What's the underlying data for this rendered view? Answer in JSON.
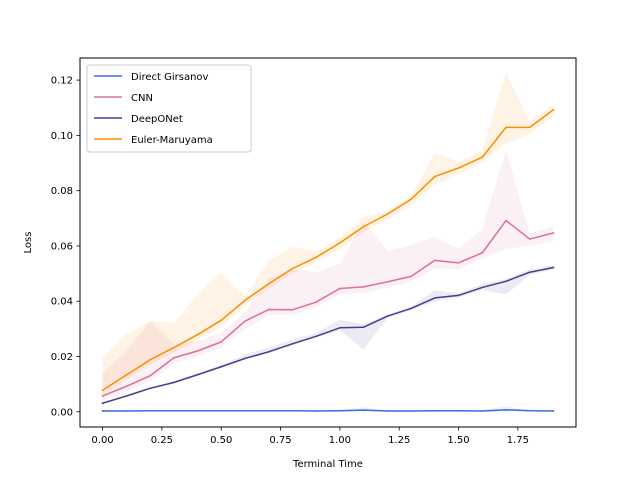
{
  "chart_data": {
    "type": "line",
    "title": "",
    "xlabel": "Terminal Time",
    "ylabel": "Loss",
    "xlim": [
      -0.095,
      1.995
    ],
    "ylim": [
      -0.0055,
      0.128
    ],
    "xticks": [
      0.0,
      0.25,
      0.5,
      0.75,
      1.0,
      1.25,
      1.5,
      1.75
    ],
    "xtick_labels": [
      "0.00",
      "0.25",
      "0.50",
      "0.75",
      "1.00",
      "1.25",
      "1.50",
      "1.75"
    ],
    "yticks": [
      0.0,
      0.02,
      0.04,
      0.06,
      0.08,
      0.1,
      0.12
    ],
    "ytick_labels": [
      "0.00",
      "0.02",
      "0.04",
      "0.06",
      "0.08",
      "0.10",
      "0.12"
    ],
    "grid": false,
    "legend_position": "top-left",
    "x": [
      0.0,
      0.1,
      0.2,
      0.3,
      0.4,
      0.5,
      0.6,
      0.7,
      0.8,
      0.9,
      1.0,
      1.1,
      1.2,
      1.3,
      1.4,
      1.5,
      1.6,
      1.7,
      1.8,
      1.9
    ],
    "series": [
      {
        "name": "Direct Girsanov",
        "color": "#4169e1",
        "values": [
          0.0003,
          0.0003,
          0.0004,
          0.0004,
          0.0004,
          0.0004,
          0.0004,
          0.0004,
          0.0004,
          0.0003,
          0.0004,
          0.0006,
          0.0003,
          0.0003,
          0.0004,
          0.0004,
          0.0003,
          0.0007,
          0.0004,
          0.0003
        ],
        "lower": [
          0.0001,
          0.0001,
          0.0002,
          0.0002,
          0.0002,
          0.0002,
          0.0002,
          0.0002,
          0.0002,
          0.0001,
          0.0002,
          0.0001,
          0.0001,
          0.0001,
          0.0002,
          0.0002,
          0.0001,
          0.0002,
          0.0002,
          0.0001
        ],
        "upper": [
          0.0006,
          0.0006,
          0.0006,
          0.0006,
          0.0006,
          0.0006,
          0.0006,
          0.0006,
          0.0006,
          0.0006,
          0.0007,
          0.0016,
          0.0006,
          0.0006,
          0.0007,
          0.0007,
          0.0006,
          0.0019,
          0.0008,
          0.0006
        ]
      },
      {
        "name": "CNN",
        "color": "#db7093",
        "values": [
          0.0057,
          0.0092,
          0.013,
          0.0195,
          0.022,
          0.0253,
          0.0328,
          0.037,
          0.0369,
          0.0397,
          0.0446,
          0.0452,
          0.047,
          0.049,
          0.0548,
          0.0539,
          0.0575,
          0.0692,
          0.0625,
          0.0647
        ],
        "lower": [
          0.004,
          0.0075,
          0.011,
          0.0175,
          0.02,
          0.0233,
          0.03,
          0.035,
          0.035,
          0.0378,
          0.0425,
          0.043,
          0.045,
          0.047,
          0.052,
          0.0515,
          0.0555,
          0.059,
          0.06,
          0.0618
        ],
        "upper": [
          0.0138,
          0.022,
          0.0328,
          0.0245,
          0.0255,
          0.0285,
          0.036,
          0.048,
          0.0516,
          0.0505,
          0.0535,
          0.0686,
          0.0583,
          0.0602,
          0.0633,
          0.059,
          0.066,
          0.0945,
          0.0645,
          0.0672
        ]
      },
      {
        "name": "DeepONet",
        "color": "#483d8b",
        "values": [
          0.0031,
          0.0057,
          0.0085,
          0.0106,
          0.0134,
          0.0163,
          0.0193,
          0.0217,
          0.0246,
          0.0273,
          0.0304,
          0.0306,
          0.0346,
          0.0374,
          0.0412,
          0.0421,
          0.045,
          0.0472,
          0.0505,
          0.0522
        ],
        "lower": [
          0.0027,
          0.0053,
          0.0081,
          0.0102,
          0.013,
          0.0159,
          0.0188,
          0.0212,
          0.0241,
          0.0268,
          0.0295,
          0.0225,
          0.034,
          0.0368,
          0.04,
          0.0414,
          0.044,
          0.0425,
          0.0495,
          0.0515
        ],
        "upper": [
          0.0035,
          0.0061,
          0.0089,
          0.011,
          0.0138,
          0.0168,
          0.0208,
          0.0232,
          0.026,
          0.0285,
          0.0332,
          0.0318,
          0.0352,
          0.038,
          0.044,
          0.0428,
          0.0462,
          0.048,
          0.0515,
          0.053
        ]
      },
      {
        "name": "Euler-Maruyama",
        "color": "#ff8c00",
        "values": [
          0.0078,
          0.0133,
          0.0188,
          0.0232,
          0.0279,
          0.0331,
          0.0403,
          0.0463,
          0.0518,
          0.0559,
          0.0611,
          0.067,
          0.0715,
          0.0769,
          0.0851,
          0.0882,
          0.0921,
          0.1029,
          0.1029,
          0.1093
        ],
        "lower": [
          0.006,
          0.0115,
          0.017,
          0.0215,
          0.026,
          0.0305,
          0.0385,
          0.0445,
          0.05,
          0.054,
          0.059,
          0.065,
          0.0695,
          0.0745,
          0.082,
          0.086,
          0.09,
          0.097,
          0.1005,
          0.107
        ],
        "upper": [
          0.0198,
          0.028,
          0.0328,
          0.0322,
          0.0425,
          0.0505,
          0.0418,
          0.0545,
          0.0598,
          0.058,
          0.063,
          0.0705,
          0.0725,
          0.078,
          0.0937,
          0.0905,
          0.0945,
          0.1227,
          0.105,
          0.1115
        ]
      }
    ]
  }
}
